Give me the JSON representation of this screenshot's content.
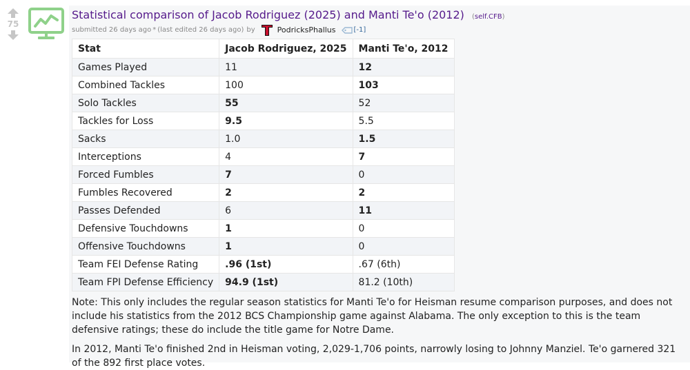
{
  "post": {
    "score": "75",
    "title": "Statistical comparison of Jacob Rodriguez (2025) and Manti Te'o (2012)",
    "domain": "self.CFB",
    "submitted": "submitted 26 days ago",
    "edited_marker": "*",
    "edited_text": "(last edited 26 days ago)",
    "by": "by",
    "author": "PodricksPhallus",
    "karma": "[-1]",
    "colors": {
      "title": "#551a8b",
      "thumb": "#8fd18a",
      "content_bg": "#f6f7f8"
    },
    "icons": {
      "upvote": "up-arrow-icon",
      "downvote": "down-arrow-icon",
      "thumbnail": "chart-monitor-icon",
      "flair": "texas-tech-logo",
      "tag": "tag-icon"
    }
  },
  "table": {
    "headers": [
      "Stat",
      "Jacob Rodriguez, 2025",
      "Manti Te'o, 2012"
    ],
    "rows": [
      {
        "stat": "Games Played",
        "a": "11",
        "b": "12",
        "bold": "b"
      },
      {
        "stat": "Combined Tackles",
        "a": "100",
        "b": "103",
        "bold": "b"
      },
      {
        "stat": "Solo Tackles",
        "a": "55",
        "b": "52",
        "bold": "a"
      },
      {
        "stat": "Tackles for Loss",
        "a": "9.5",
        "b": "5.5",
        "bold": "a"
      },
      {
        "stat": "Sacks",
        "a": "1.0",
        "b": "1.5",
        "bold": "b"
      },
      {
        "stat": "Interceptions",
        "a": "4",
        "b": "7",
        "bold": "b"
      },
      {
        "stat": "Forced Fumbles",
        "a": "7",
        "b": "0",
        "bold": "a"
      },
      {
        "stat": "Fumbles Recovered",
        "a": "2",
        "b": "2",
        "bold": "both"
      },
      {
        "stat": "Passes Defended",
        "a": "6",
        "b": "11",
        "bold": "b"
      },
      {
        "stat": "Defensive Touchdowns",
        "a": "1",
        "b": "0",
        "bold": "a"
      },
      {
        "stat": "Offensive Touchdowns",
        "a": "1",
        "b": "0",
        "bold": "a"
      },
      {
        "stat": "Team FEI Defense Rating",
        "a": ".96 (1st)",
        "b": ".67 (6th)",
        "bold": "a"
      },
      {
        "stat": "Team FPI Defense Efficiency",
        "a": "94.9 (1st)",
        "b": "81.2 (10th)",
        "bold": "a"
      }
    ]
  },
  "notes": [
    "Note: This only includes the regular season statistics for Manti Te'o for Heisman resume comparison purposes, and does not include his statistics from the 2012 BCS Championship game against Alabama. The only exception to this is the team defensive ratings; these do include the title game for Notre Dame.",
    "In 2012, Manti Te'o finished 2nd in Heisman voting, 2,029-1,706 points, narrowly losing to Johnny Manziel. Te'o garnered 321 of the 892 first place votes."
  ]
}
